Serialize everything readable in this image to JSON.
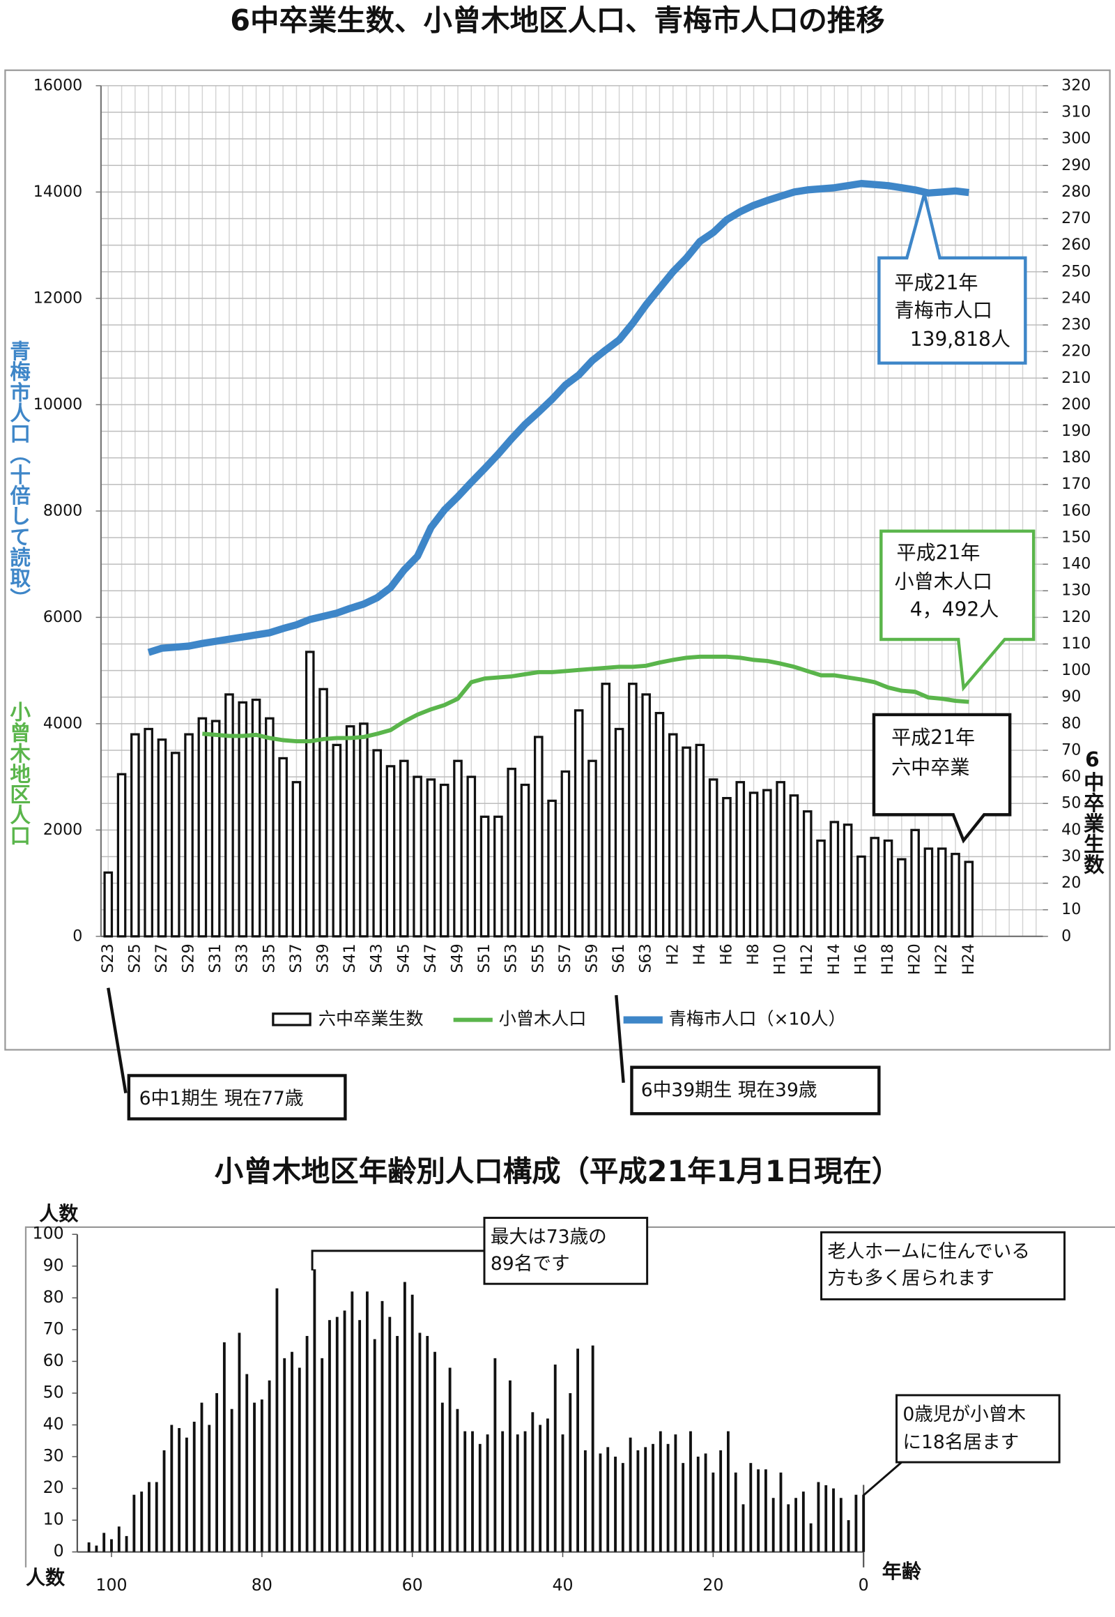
{
  "chart_data": [
    {
      "type": "combo",
      "title": "6中卒業生数、小曾木地区人口、青梅市人口の推移",
      "categories": [
        "S23",
        null,
        "S25",
        null,
        "S27",
        null,
        "S29",
        null,
        "S31",
        null,
        "S33",
        null,
        "S35",
        null,
        "S37",
        null,
        "S39",
        null,
        "S41",
        null,
        "S43",
        null,
        "S45",
        null,
        "S47",
        null,
        "S49",
        null,
        "S51",
        null,
        "S53",
        null,
        "S55",
        null,
        "S57",
        null,
        "S59",
        null,
        "S61",
        null,
        "S63",
        null,
        "H2",
        null,
        "H4",
        null,
        "H6",
        null,
        "H8",
        null,
        "H10",
        null,
        "H12",
        null,
        "H14",
        null,
        "H16",
        null,
        "H18",
        null,
        "H20",
        null,
        "H22",
        null,
        "H24",
        null,
        null,
        null,
        null,
        null
      ],
      "series": [
        {
          "name": "六中卒業生数",
          "type": "bar",
          "axis": "y2",
          "color": "#111111",
          "values": [
            24,
            61,
            76,
            78,
            74,
            69,
            76,
            82,
            81,
            91,
            88,
            89,
            82,
            67,
            58,
            107,
            93,
            72,
            79,
            80,
            70,
            64,
            66,
            60,
            59,
            57,
            66,
            60,
            45,
            45,
            63,
            57,
            75,
            51,
            62,
            85,
            66,
            95,
            78,
            95,
            91,
            84,
            76,
            71,
            72,
            59,
            52,
            58,
            54,
            55,
            58,
            53,
            47,
            36,
            43,
            42,
            30,
            37,
            36,
            29,
            40,
            33,
            33,
            31,
            28,
            null,
            null,
            null,
            null,
            null
          ]
        },
        {
          "name": "小曾木人口",
          "type": "line",
          "color": "#5ab54b",
          "values": [
            null,
            null,
            null,
            null,
            null,
            null,
            null,
            3810,
            3790,
            3770,
            3770,
            3790,
            3730,
            3690,
            3670,
            3670,
            3710,
            3730,
            3730,
            3750,
            3810,
            3880,
            4040,
            4170,
            4270,
            4350,
            4470,
            4780,
            4850,
            4870,
            4890,
            4930,
            4970,
            4970,
            4990,
            5010,
            5030,
            5050,
            5070,
            5070,
            5090,
            5150,
            5200,
            5240,
            5260,
            5260,
            5260,
            5240,
            5200,
            5180,
            5130,
            5070,
            4990,
            4910,
            4910,
            4870,
            4830,
            4780,
            4680,
            4620,
            4600,
            4492,
            4470,
            4430,
            4410,
            null,
            null,
            null,
            null,
            null
          ]
        },
        {
          "name": "青梅市人口（×10人）",
          "type": "line",
          "color": "#3e86c8",
          "values": [
            null,
            null,
            null,
            5340,
            5420,
            5440,
            5460,
            5510,
            5550,
            5590,
            5630,
            5670,
            5710,
            5790,
            5860,
            5960,
            6020,
            6080,
            6170,
            6250,
            6370,
            6560,
            6890,
            7150,
            7690,
            8020,
            8270,
            8540,
            8800,
            9070,
            9360,
            9630,
            9860,
            10100,
            10370,
            10560,
            10830,
            11030,
            11220,
            11530,
            11880,
            12190,
            12500,
            12760,
            13070,
            13240,
            13480,
            13630,
            13750,
            13840,
            13920,
            14000,
            14040,
            14060,
            14080,
            14120,
            14160,
            14140,
            14120,
            14080,
            14040,
            13982,
            14000,
            14020,
            13990,
            null,
            null,
            null,
            null,
            null
          ]
        }
      ],
      "ylim": [
        0,
        16000
      ],
      "yticks": [
        0,
        2000,
        4000,
        6000,
        8000,
        10000,
        12000,
        14000,
        16000
      ],
      "y2lim": [
        0,
        320
      ],
      "y2ticks": [
        0,
        10,
        20,
        30,
        40,
        50,
        60,
        70,
        80,
        90,
        100,
        110,
        120,
        130,
        140,
        150,
        160,
        170,
        180,
        190,
        200,
        210,
        220,
        230,
        240,
        250,
        260,
        270,
        280,
        290,
        300,
        310,
        320
      ],
      "ylabels": [
        {
          "text": "青梅市人口（十倍して読取）",
          "color": "#3e86c8"
        },
        {
          "text": "小曾木地区人口",
          "color": "#5ab54b"
        }
      ],
      "y2label": "6中卒業生数",
      "grid": true,
      "annotations": [
        [
          "平成21年",
          "青梅市人口",
          "139,818人"
        ],
        [
          "平成21年",
          "小曾木人口",
          "4，492人"
        ],
        [
          "平成21年",
          "六中卒業"
        ],
        [
          "6中1期生 現在77歳"
        ],
        [
          "6中39期生 現在39歳"
        ]
      ]
    },
    {
      "type": "bar",
      "title": "小曾木地区年齢別人口構成（平成21年1月1日現在）",
      "x": [
        0,
        1,
        2,
        3,
        4,
        5,
        6,
        7,
        8,
        9,
        10,
        11,
        12,
        13,
        14,
        15,
        16,
        17,
        18,
        19,
        20,
        21,
        22,
        23,
        24,
        25,
        26,
        27,
        28,
        29,
        30,
        31,
        32,
        33,
        34,
        35,
        36,
        37,
        38,
        39,
        40,
        41,
        42,
        43,
        44,
        45,
        46,
        47,
        48,
        49,
        50,
        51,
        52,
        53,
        54,
        55,
        56,
        57,
        58,
        59,
        60,
        61,
        62,
        63,
        64,
        65,
        66,
        67,
        68,
        69,
        70,
        71,
        72,
        73,
        74,
        75,
        76,
        77,
        78,
        79,
        80,
        81,
        82,
        83,
        84,
        85,
        86,
        87,
        88,
        89,
        90,
        91,
        92,
        93,
        94,
        95,
        96,
        97,
        98,
        99,
        100,
        101,
        102,
        103
      ],
      "values": [
        18,
        18,
        10,
        17,
        20,
        21,
        22,
        9,
        19,
        17,
        15,
        25,
        17,
        26,
        26,
        28,
        15,
        25,
        38,
        32,
        25,
        31,
        30,
        38,
        28,
        37,
        34,
        38,
        34,
        33,
        32,
        36,
        28,
        30,
        33,
        31,
        65,
        32,
        64,
        50,
        37,
        59,
        42,
        40,
        44,
        38,
        37,
        54,
        38,
        61,
        37,
        34,
        38,
        38,
        45,
        58,
        47,
        63,
        68,
        69,
        81,
        85,
        68,
        74,
        79,
        67,
        82,
        73,
        82,
        76,
        74,
        73,
        61,
        89,
        68,
        58,
        63,
        61,
        83,
        54,
        48,
        47,
        56,
        69,
        45,
        66,
        50,
        40,
        47,
        41,
        36,
        39,
        40,
        32,
        22,
        22,
        19,
        18,
        5,
        8,
        4,
        6,
        2,
        3
      ],
      "color": "#111111",
      "xlim": [
        0,
        104
      ],
      "x_reversed": true,
      "xticks": [
        0,
        20,
        40,
        60,
        80,
        100
      ],
      "ylim": [
        0,
        100
      ],
      "yticks": [
        0,
        10,
        20,
        30,
        40,
        50,
        60,
        70,
        80,
        90,
        100
      ],
      "ylabels": [
        "人数",
        "人数"
      ],
      "xlabel": "年齢",
      "annotations": [
        [
          "最大は73歳の",
          "89名です"
        ],
        [
          "老人ホームに住んでいる",
          "方も多く居られます"
        ],
        [
          "0歳児が小曾木",
          "に18名居ます"
        ]
      ]
    }
  ]
}
